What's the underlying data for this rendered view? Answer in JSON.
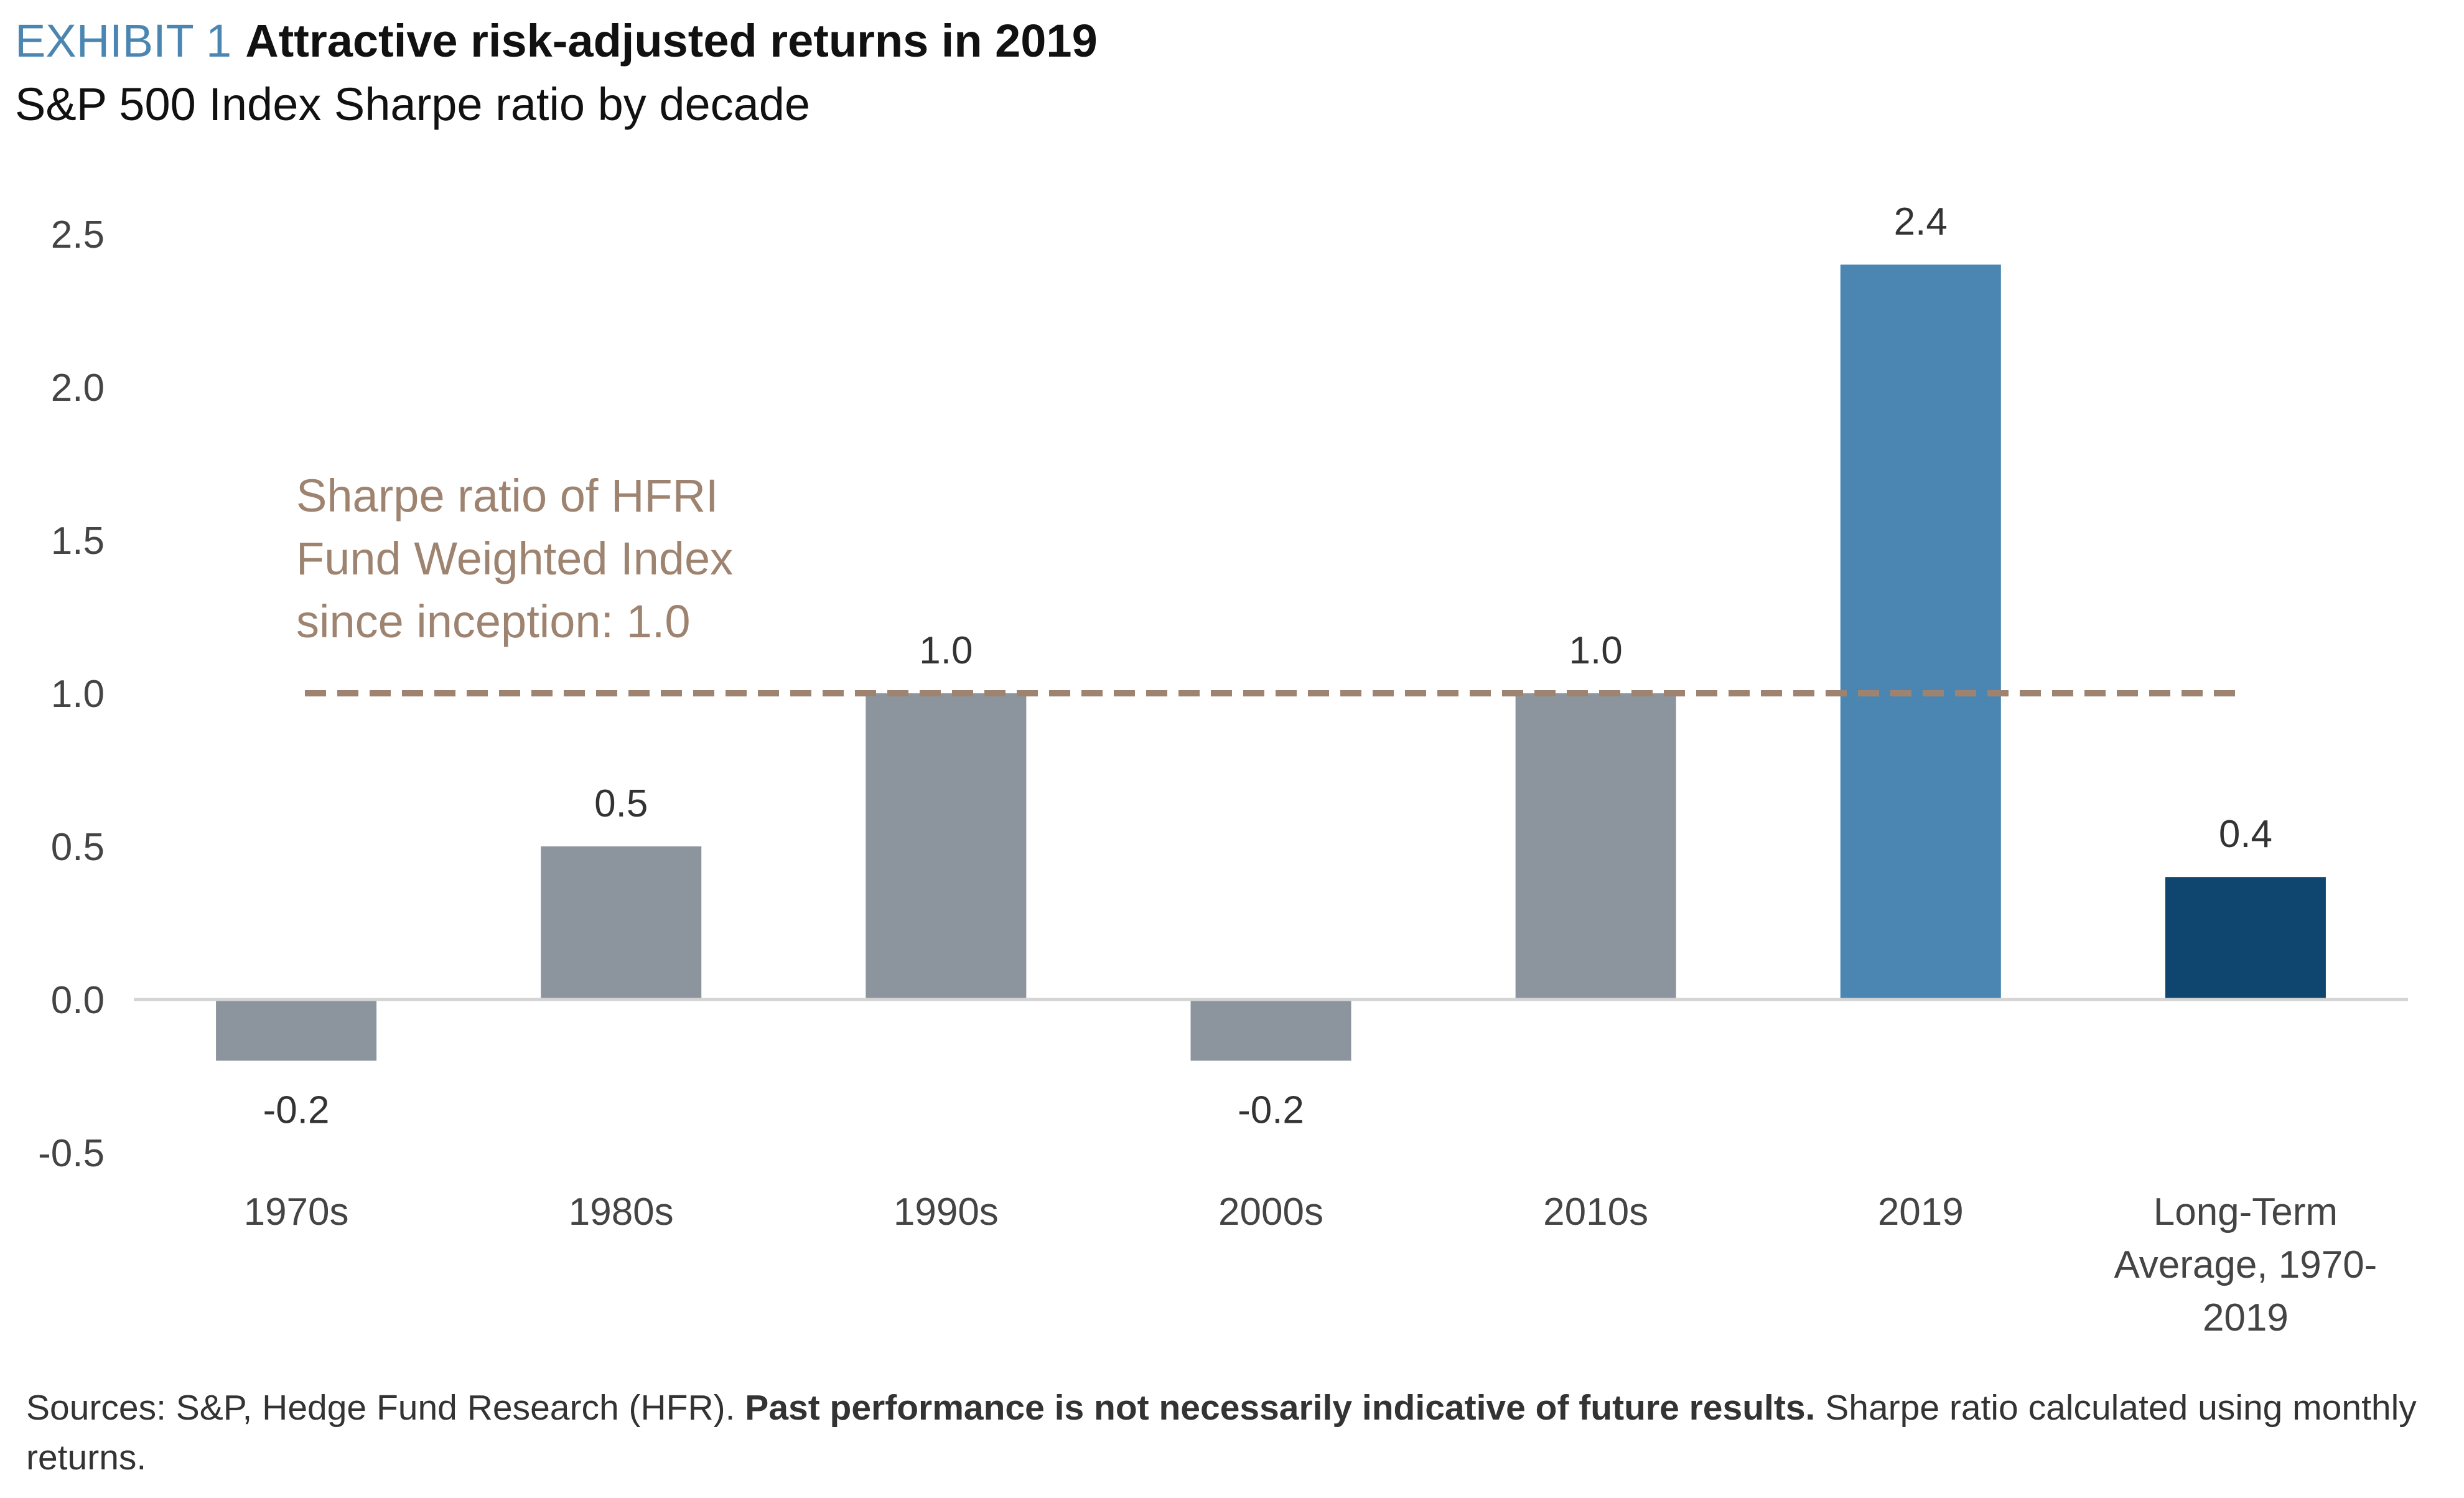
{
  "header": {
    "exhibit_tag": "EXHIBIT 1",
    "title": "Attractive risk-adjusted returns in 2019",
    "subtitle": "S&P 500 Index Sharpe ratio by decade"
  },
  "chart_data": {
    "type": "bar",
    "categories": [
      "1970s",
      "1980s",
      "1990s",
      "2000s",
      "2010s",
      "2019",
      "Long-Term Average, 1970-2019"
    ],
    "category_label_lines": [
      [
        "1970s"
      ],
      [
        "1980s"
      ],
      [
        "1990s"
      ],
      [
        "2000s"
      ],
      [
        "2010s"
      ],
      [
        "2019"
      ],
      [
        "Long-Term",
        "Average, 1970-",
        "2019"
      ]
    ],
    "values": [
      -0.2,
      0.5,
      1.0,
      -0.2,
      1.0,
      2.4,
      0.4
    ],
    "data_labels": [
      "-0.2",
      "0.5",
      "1.0",
      "-0.2",
      "1.0",
      "2.4",
      "0.4"
    ],
    "bar_colors": [
      "#8c959d",
      "#8c959d",
      "#8c959d",
      "#8c959d",
      "#8c959d",
      "#4a86b1",
      "#0f4670"
    ],
    "y_ticks": [
      -0.5,
      0.0,
      0.5,
      1.0,
      1.5,
      2.0,
      2.5
    ],
    "y_tick_labels": [
      "-0.5",
      "0.0",
      "0.5",
      "1.0",
      "1.5",
      "2.0",
      "2.5"
    ],
    "ylim": [
      -0.5,
      2.5
    ],
    "grid": false,
    "reference_line": {
      "value": 1.0,
      "style": "dashed",
      "color": "#9e8470",
      "label_lines": [
        "Sharpe ratio of HFRI",
        "Fund Weighted Index",
        "since inception: 1.0"
      ]
    }
  },
  "footer": {
    "sources": "Sources: S&P, Hedge Fund Research (HFR).",
    "disclaimer": "Past performance is not necessarily indicative of future results.",
    "note": "Sharpe ratio calculated using monthly returns."
  }
}
